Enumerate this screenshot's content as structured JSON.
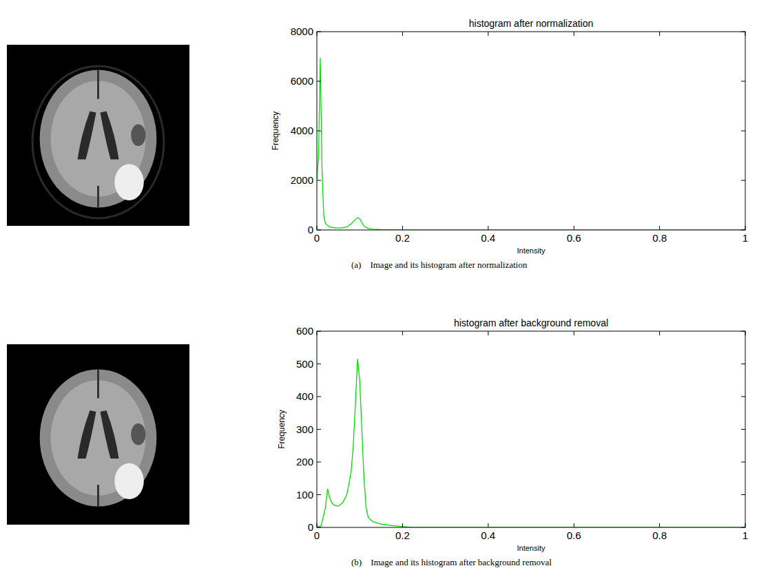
{
  "chart_data": [
    {
      "type": "line",
      "title": "histogram after normalization",
      "x_label": "Intensity",
      "y_label": "Frequency",
      "caption": "(a)    Image and its histogram after normalization",
      "x": [
        0,
        0.004,
        0.008,
        0.012,
        0.016,
        0.02,
        0.03,
        0.04,
        0.05,
        0.06,
        0.07,
        0.08,
        0.09,
        0.095,
        0.1,
        0.105,
        0.11,
        0.12,
        0.13,
        0.15,
        0.2,
        0.22,
        1
      ],
      "values": [
        2000,
        3000,
        6950,
        2500,
        600,
        250,
        120,
        90,
        80,
        90,
        120,
        250,
        420,
        500,
        450,
        300,
        150,
        60,
        30,
        15,
        5,
        0,
        0
      ],
      "color": "#00e000",
      "xlim": [
        0,
        1
      ],
      "xticks": [
        0,
        0.2,
        0.4,
        0.6,
        0.8,
        1
      ],
      "ylim": [
        0,
        8000
      ],
      "yticks": [
        0,
        2000,
        4000,
        6000,
        8000
      ],
      "grid": false
    },
    {
      "type": "line",
      "title": "histogram after background removal",
      "x_label": "Intensity",
      "y_label": "Frequency",
      "caption": "(b)    Image and its histogram after background removal",
      "x": [
        0,
        0.01,
        0.02,
        0.025,
        0.03,
        0.035,
        0.04,
        0.05,
        0.06,
        0.07,
        0.08,
        0.085,
        0.09,
        0.095,
        0.1,
        0.105,
        0.11,
        0.115,
        0.12,
        0.13,
        0.15,
        0.18,
        0.22,
        1
      ],
      "values": [
        0,
        5,
        60,
        118,
        90,
        75,
        68,
        65,
        75,
        100,
        170,
        250,
        380,
        515,
        450,
        300,
        150,
        60,
        30,
        18,
        10,
        5,
        0,
        0
      ],
      "color": "#00e000",
      "xlim": [
        0,
        1
      ],
      "xticks": [
        0,
        0.2,
        0.4,
        0.6,
        0.8,
        1
      ],
      "ylim": [
        0,
        600
      ],
      "yticks": [
        0,
        100,
        200,
        300,
        400,
        500,
        600
      ],
      "grid": false
    }
  ]
}
